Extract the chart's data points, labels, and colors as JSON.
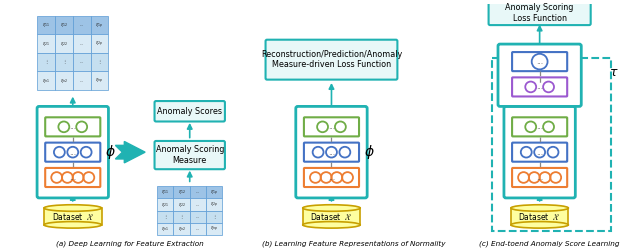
{
  "title_a": "(a) Deep Learning for Feature Extraction",
  "title_b": "(b) Learning Feature Representations of Normality",
  "title_c": "(c) End-toend Anomaly Score Learning",
  "box_a_label": "Anomaly Scores",
  "box_a2_label": "Anomaly Scoring\nMeasure",
  "box_b_label": "Reconstruction/Prediction/Anomaly\nMeasure-driven Loss Function",
  "box_c_label": "Anomaly Scoring\nLoss Function",
  "phi_label": "ϕ",
  "tau_label": "τ",
  "color_teal": "#20B2B2",
  "color_green": "#70AD47",
  "color_blue": "#4472C4",
  "color_orange": "#ED7D31",
  "color_purple": "#9B59D0",
  "color_yellow_light": "#FEFEA0",
  "color_yellow_dark": "#C8A000",
  "color_teal_bg": "#E8F8F8",
  "matrix_bg": "#C5DFF0",
  "matrix_dark": "#9DC3E6",
  "matrix_mid": "#D9EAF5"
}
